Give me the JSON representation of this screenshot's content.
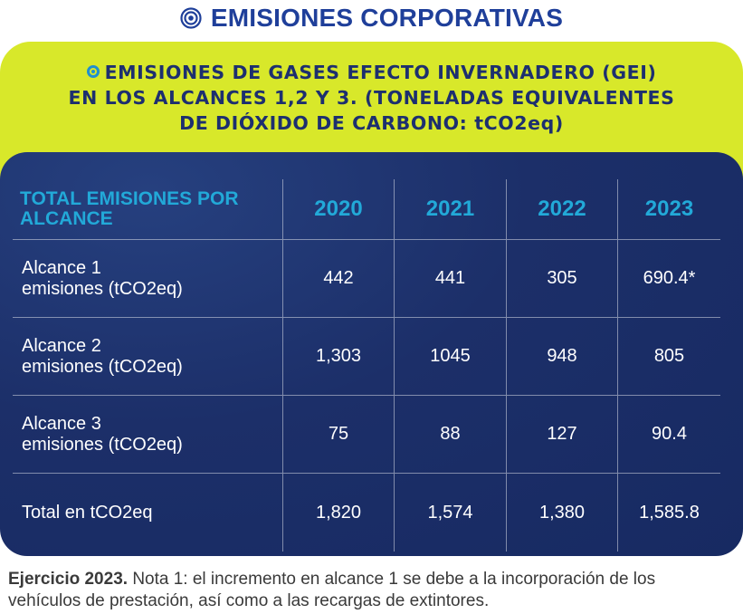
{
  "header": {
    "title": "EMISIONES CORPORATIVAS",
    "icon": "bullseye-icon"
  },
  "subtitle": {
    "line1": "EMISIONES DE GASES EFECTO INVERNADERO (GEI)",
    "line2": "EN LOS ALCANCES 1,2 Y 3. (TONELADAS EQUIVALENTES",
    "line3": "DE DIÓXIDO DE CARBONO: tCO2eq)",
    "icon": "ring-bullet-icon"
  },
  "table": {
    "header_label_line1": "TOTAL EMISIONES POR",
    "header_label_line2": "ALCANCE",
    "years": [
      "2020",
      "2021",
      "2022",
      "2023"
    ],
    "rows": [
      {
        "label_line1": "Alcance 1",
        "label_line2": "emisiones (tCO2eq)",
        "values": [
          "442",
          "441",
          "305",
          "690.4*"
        ]
      },
      {
        "label_line1": "Alcance 2",
        "label_line2": "emisiones (tCO2eq)",
        "values": [
          "1,303",
          "1045",
          "948",
          "805"
        ]
      },
      {
        "label_line1": "Alcance 3",
        "label_line2": "emisiones (tCO2eq)",
        "values": [
          "75",
          "88",
          "127",
          "90.4"
        ]
      },
      {
        "label_line1": "Total en tCO2eq",
        "label_line2": "",
        "values": [
          "1,820",
          "1,574",
          "1,380",
          "1,585.8"
        ]
      }
    ]
  },
  "footnote": {
    "bold": "Ejercicio 2023.",
    "text": " Nota 1: el incremento en alcance 1 se debe a la incorporación de los vehículos de prestación, así como a las recargas de extintores."
  },
  "colors": {
    "title_blue": "#1f3f9a",
    "lime": "#d8e82a",
    "navy": "#1c2f69",
    "header_cyan": "#22a9d8"
  }
}
